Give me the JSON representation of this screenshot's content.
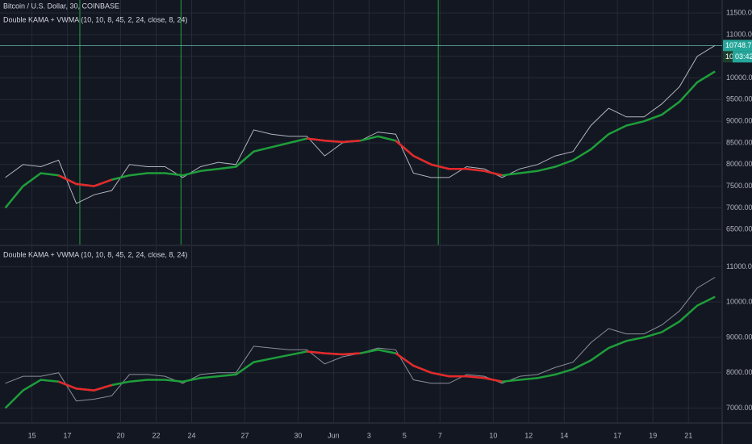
{
  "chart_data": [
    {
      "type": "line",
      "title": "Bitcoin / U.S. Dollar, 30, COINBASE",
      "subtitle": "Double KAMA + VWMA (10, 10, 8, 45, 2, 24, close, 8, 24)",
      "x": [
        13.5,
        14.5,
        15.5,
        16.5,
        17.5,
        18.5,
        19.5,
        20.5,
        21.5,
        22.5,
        23.5,
        24.5,
        25.5,
        26.5,
        27.5,
        28.5,
        29.5,
        30.5,
        31.5,
        32.5,
        33.5,
        34.5,
        35.5,
        36.5,
        37.5,
        38.5,
        39.5,
        40.5,
        41.5,
        42.5,
        43.5,
        44.5,
        45.5,
        46.5,
        47.5,
        48.5,
        49.5,
        50.5,
        51.5,
        52.5,
        53.5
      ],
      "xlim": [
        13.2,
        53.9
      ],
      "series": [
        {
          "color": "#b2b5be",
          "values": [
            7700,
            8000,
            7950,
            8100,
            7100,
            7300,
            7400,
            8000,
            7950,
            7950,
            7700,
            7950,
            8050,
            8000,
            8800,
            8700,
            8650,
            8650,
            8200,
            8500,
            8550,
            8750,
            8700,
            7800,
            7700,
            7700,
            7950,
            7900,
            7700,
            7900,
            8000,
            8200,
            8300,
            8900,
            9300,
            9100,
            9100,
            9400,
            9800,
            10500,
            10750
          ]
        },
        {
          "color": "#1e9e3a",
          "values": [
            7000,
            7500,
            7800,
            7750,
            7550,
            7500,
            7650,
            7750,
            7800,
            7800,
            7750,
            7850,
            7900,
            7950,
            8300,
            8400,
            8500,
            8600,
            8550,
            8520,
            8550,
            8650,
            8550,
            8200,
            8000,
            7900,
            7900,
            7850,
            7750,
            7800,
            7850,
            7950,
            8100,
            8350,
            8700,
            8900,
            9000,
            9150,
            9450,
            9900,
            10150
          ]
        },
        {
          "color": "#e8262b",
          "values": [
            null,
            null,
            null,
            7750,
            7550,
            7500,
            7650,
            null,
            null,
            null,
            null,
            null,
            null,
            null,
            null,
            null,
            null,
            8600,
            8550,
            8520,
            8550,
            null,
            8550,
            8200,
            8000,
            7900,
            7900,
            7850,
            7750,
            null,
            null,
            null,
            null,
            null,
            null,
            null,
            null,
            null,
            null,
            null,
            null
          ]
        }
      ],
      "ylim": [
        6150,
        11800
      ],
      "yticks": [
        {
          "value": 6500,
          "label": "6500.00"
        },
        {
          "value": 7000,
          "label": "7000.00"
        },
        {
          "value": 7500,
          "label": "7500.00"
        },
        {
          "value": 8000,
          "label": "8000.00"
        },
        {
          "value": 8500,
          "label": "8500.00"
        },
        {
          "value": 9000,
          "label": "9000.00"
        },
        {
          "value": 9500,
          "label": "9500.00"
        },
        {
          "value": 10000,
          "label": "10000.00"
        },
        {
          "value": 10500,
          "label": "10500.00"
        },
        {
          "value": 11000,
          "label": "11000.00"
        },
        {
          "value": 11500,
          "label": "11500.00"
        }
      ],
      "vlines": [
        17.7,
        23.4,
        37.9
      ],
      "vline_color": "#1ea83c",
      "last_price": 10748.72,
      "kama_label": "10",
      "countdown": "03:42",
      "grid": true
    },
    {
      "type": "line",
      "title": "Double KAMA + VWMA (10, 10, 8, 45, 2, 24, close, 8, 24)",
      "x": [
        13.5,
        14.5,
        15.5,
        16.5,
        17.5,
        18.5,
        19.5,
        20.5,
        21.5,
        22.5,
        23.5,
        24.5,
        25.5,
        26.5,
        27.5,
        28.5,
        29.5,
        30.5,
        31.5,
        32.5,
        33.5,
        34.5,
        35.5,
        36.5,
        37.5,
        38.5,
        39.5,
        40.5,
        41.5,
        42.5,
        43.5,
        44.5,
        45.5,
        46.5,
        47.5,
        48.5,
        49.5,
        50.5,
        51.5,
        52.5,
        53.5
      ],
      "xlim": [
        13.2,
        53.9
      ],
      "series": [
        {
          "color": "#8a8f9c",
          "values": [
            7700,
            7900,
            7900,
            8000,
            7200,
            7250,
            7350,
            7950,
            7950,
            7900,
            7700,
            7950,
            8000,
            8000,
            8750,
            8700,
            8650,
            8650,
            8250,
            8450,
            8550,
            8700,
            8650,
            7800,
            7700,
            7700,
            7950,
            7900,
            7700,
            7900,
            7950,
            8150,
            8300,
            8850,
            9250,
            9100,
            9100,
            9350,
            9750,
            10400,
            10700
          ]
        },
        {
          "color": "#1e9e3a",
          "values": [
            7000,
            7500,
            7800,
            7750,
            7550,
            7500,
            7650,
            7750,
            7800,
            7800,
            7750,
            7850,
            7900,
            7950,
            8300,
            8400,
            8500,
            8600,
            8550,
            8520,
            8550,
            8650,
            8550,
            8200,
            8000,
            7900,
            7900,
            7850,
            7750,
            7800,
            7850,
            7950,
            8100,
            8350,
            8700,
            8900,
            9000,
            9150,
            9450,
            9900,
            10150
          ]
        },
        {
          "color": "#e8262b",
          "values": [
            null,
            null,
            null,
            7750,
            7550,
            7500,
            7650,
            null,
            null,
            null,
            null,
            null,
            null,
            null,
            null,
            null,
            null,
            8600,
            8550,
            8520,
            8550,
            null,
            8550,
            8200,
            8000,
            7900,
            7900,
            7850,
            7750,
            null,
            null,
            null,
            null,
            null,
            null,
            null,
            null,
            null,
            null,
            null,
            null
          ]
        }
      ],
      "ylim": [
        6600,
        11580
      ],
      "yticks": [
        {
          "value": 7000,
          "label": "7000.00"
        },
        {
          "value": 8000,
          "label": "8000.00"
        },
        {
          "value": 9000,
          "label": "9000.00"
        },
        {
          "value": 10000,
          "label": "10000.00"
        },
        {
          "value": 11000,
          "label": "11000.00"
        }
      ],
      "xticks": [
        {
          "value": 15,
          "label": "15"
        },
        {
          "value": 17,
          "label": "17"
        },
        {
          "value": 20,
          "label": "20"
        },
        {
          "value": 22,
          "label": "22"
        },
        {
          "value": 24,
          "label": "24"
        },
        {
          "value": 27,
          "label": "27"
        },
        {
          "value": 30,
          "label": "30"
        },
        {
          "value": 32,
          "label": "Jun"
        },
        {
          "value": 34,
          "label": "3"
        },
        {
          "value": 36,
          "label": "5"
        },
        {
          "value": 38,
          "label": "7"
        },
        {
          "value": 41,
          "label": "10"
        },
        {
          "value": 43,
          "label": "12"
        },
        {
          "value": 45,
          "label": "14"
        },
        {
          "value": 48,
          "label": "17"
        },
        {
          "value": 50,
          "label": "19"
        },
        {
          "value": 52,
          "label": "21"
        }
      ],
      "grid": true
    }
  ]
}
